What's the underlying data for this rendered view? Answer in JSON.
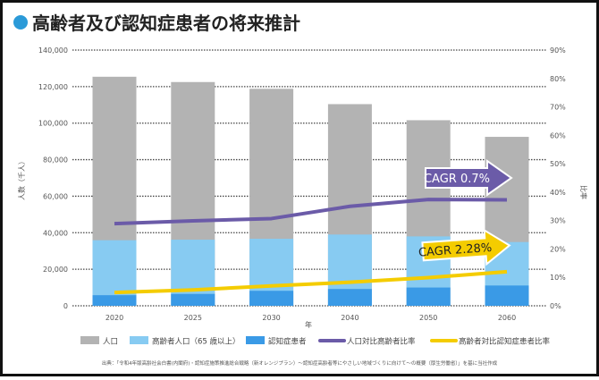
{
  "title": "高齢者及び認知症患者の将来推計",
  "colors": {
    "total": "#b3b3b3",
    "elderly": "#87cbf2",
    "dementia": "#3a9ae6",
    "elderly_ratio": "#6b5ba8",
    "dementia_ratio": "#f4cc00",
    "title_dot": "#2b9ad8"
  },
  "chart_data": {
    "type": "bar",
    "bar_mode": "overlapped",
    "categories": [
      "2020",
      "2025",
      "2030",
      "2040",
      "2050",
      "2060"
    ],
    "xlabel": "年",
    "ylabel": "人数（千人）",
    "y2label": "比率",
    "ylim": [
      0,
      140000
    ],
    "y2lim": [
      0,
      90
    ],
    "yticks": [
      "0",
      "20,000",
      "40,000",
      "60,000",
      "80,000",
      "100,000",
      "120,000",
      "140,000"
    ],
    "y2ticks": [
      "0%",
      "10%",
      "20%",
      "30%",
      "40%",
      "50%",
      "60%",
      "70%",
      "80%",
      "90%"
    ],
    "grid": true,
    "legend_position": "bottom",
    "series": [
      {
        "name": "人口",
        "type": "bar",
        "axis": "left",
        "values": [
          125400,
          122500,
          118800,
          110400,
          101600,
          92500
        ]
      },
      {
        "name": "高齢者人口（65 歳以上）",
        "type": "bar",
        "axis": "left",
        "values": [
          35900,
          36200,
          36700,
          39000,
          38000,
          34900
        ]
      },
      {
        "name": "認知症患者",
        "type": "bar",
        "axis": "left",
        "values": [
          5800,
          6500,
          8200,
          9200,
          10000,
          11100
        ]
      },
      {
        "name": "人口対比高齢者比率",
        "type": "line",
        "axis": "right",
        "values": [
          28.9,
          29.9,
          30.7,
          35.0,
          37.4,
          37.3
        ]
      },
      {
        "name": "高齢者対比認知症患者比率",
        "type": "line",
        "axis": "right",
        "values": [
          4.7,
          5.6,
          7.0,
          8.3,
          9.9,
          12.0
        ]
      }
    ],
    "annotations": [
      "CAGR 0.7%",
      "CAGR 2.28%"
    ]
  },
  "source": "出典：「令和4年版高齢社会白書(内閣府)・認知症施策推進総合戦略（新オレンジプラン）～認知症高齢者等にやさしい地域づくりに向けて～の概要（厚生労働省）」を基に当社作成"
}
